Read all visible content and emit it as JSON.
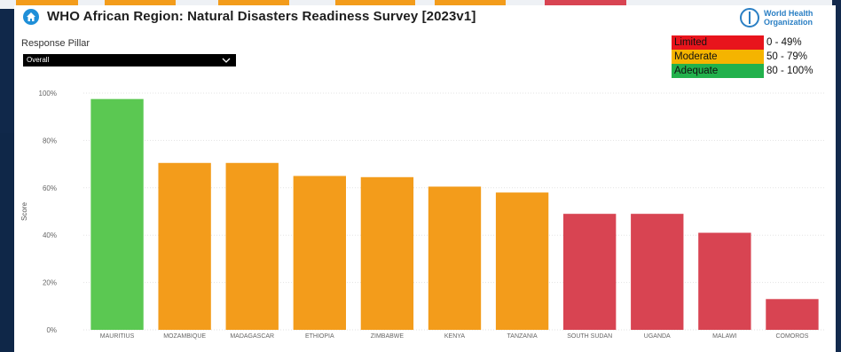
{
  "header": {
    "title": "WHO African Region: Natural Disasters Readiness Survey [2023v1]",
    "logo_text_line1": "World Health",
    "logo_text_line2": "Organization"
  },
  "slicer": {
    "label": "Response Pillar",
    "selected": "Overall"
  },
  "legend": [
    {
      "label": "Limited",
      "range": "0 - 49%",
      "color": "#e8141c"
    },
    {
      "label": "Moderate",
      "range": "50 - 79%",
      "color": "#f5b400"
    },
    {
      "label": "Adequate",
      "range": "80 - 100%",
      "color": "#22b14c"
    }
  ],
  "colors": {
    "adequate_bar": "#5bc852",
    "moderate_bar": "#f39c1b",
    "limited_bar": "#d84452"
  },
  "chart_data": {
    "type": "bar",
    "ylabel": "Score",
    "ylim": [
      0,
      100
    ],
    "yticks": [
      "0%",
      "20%",
      "40%",
      "60%",
      "80%",
      "100%"
    ],
    "categories": [
      "MAURITIUS",
      "MOZAMBIQUE",
      "MADAGASCAR",
      "ETHIOPIA",
      "ZIMBABWE",
      "KENYA",
      "TANZANIA",
      "SOUTH SUDAN",
      "UGANDA",
      "MALAWI",
      "COMOROS"
    ],
    "values": [
      97.5,
      70.5,
      70.5,
      65,
      64.5,
      60.5,
      58,
      49,
      49,
      41,
      13
    ],
    "bar_levels": [
      "adequate",
      "moderate",
      "moderate",
      "moderate",
      "moderate",
      "moderate",
      "moderate",
      "limited",
      "limited",
      "limited",
      "limited"
    ]
  }
}
